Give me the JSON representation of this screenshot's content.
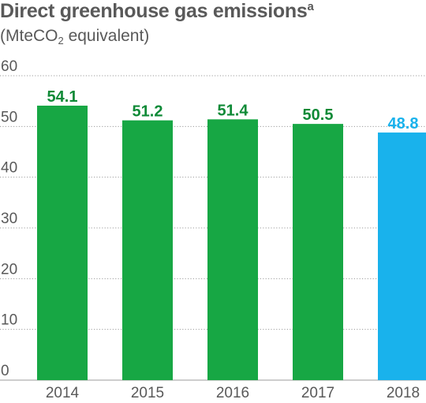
{
  "title": "Direct greenhouse gas emissions",
  "title_superscript": "a",
  "subtitle_pre": "(MteCO",
  "subtitle_sub": "2",
  "subtitle_post": " equivalent)",
  "colors": {
    "text": "#595959",
    "grid": "#9b9b9b",
    "bar_default": "#17a744",
    "bar_highlight": "#19b2ec",
    "label_default": "#0f8a37",
    "label_highlight": "#19b2ec"
  },
  "chart_data": {
    "type": "bar",
    "categories": [
      "2014",
      "2015",
      "2016",
      "2017",
      "2018"
    ],
    "values": [
      54.1,
      51.2,
      51.4,
      50.5,
      48.8
    ],
    "data_labels": [
      "54.1",
      "51.2",
      "51.4",
      "50.5",
      "48.8"
    ],
    "highlighted_category": "2018",
    "ylim": [
      0,
      60
    ],
    "yticks": [
      "0",
      "10",
      "20",
      "30",
      "40",
      "50",
      "60"
    ],
    "grid": true,
    "legend": "none"
  }
}
